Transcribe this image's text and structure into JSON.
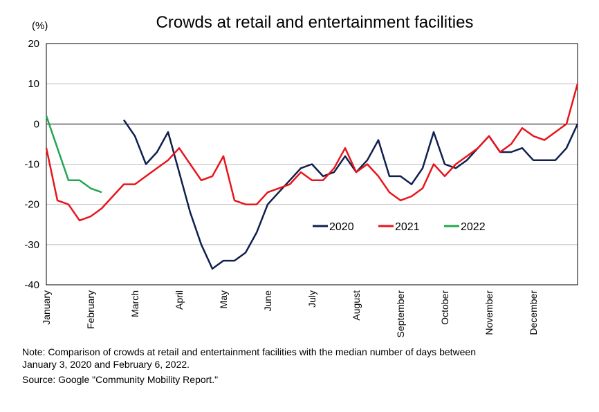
{
  "chart_data": {
    "type": "line",
    "title": "Crowds at retail and entertainment facilities",
    "y_label": "(%)",
    "categories": [
      "January",
      null,
      null,
      null,
      "February",
      null,
      null,
      null,
      "March",
      null,
      null,
      null,
      "April",
      null,
      null,
      null,
      "May",
      null,
      null,
      null,
      "June",
      null,
      null,
      null,
      "July",
      null,
      null,
      null,
      "August",
      null,
      null,
      null,
      "September",
      null,
      null,
      null,
      "October",
      null,
      null,
      null,
      "November",
      null,
      null,
      null,
      "December",
      null,
      null,
      null,
      null
    ],
    "series": [
      {
        "name": "2020",
        "color": "#0f1f4e",
        "values": [
          null,
          null,
          null,
          null,
          null,
          null,
          null,
          1,
          -3,
          -10,
          -7,
          -2,
          -12,
          -22,
          -30,
          -36,
          -34,
          -34,
          -32,
          -27,
          -20,
          -17,
          -14,
          -11,
          -10,
          -13,
          -12,
          -8,
          -12,
          -9,
          -4,
          -13,
          -13,
          -15,
          -11,
          -2,
          -10,
          -11,
          -9,
          -6,
          -3,
          -7,
          -7,
          -6,
          -9,
          -9,
          -9,
          -6,
          0
        ]
      },
      {
        "name": "2021",
        "color": "#e8141b",
        "values": [
          -6,
          -19,
          -20,
          -24,
          -23,
          -21,
          -18,
          -15,
          -15,
          -13,
          -11,
          -9,
          -6,
          -10,
          -14,
          -13,
          -8,
          -19,
          -20,
          -20,
          -17,
          -16,
          -15,
          -12,
          -14,
          -14,
          -11,
          -6,
          -12,
          -10,
          -13,
          -17,
          -19,
          -18,
          -16,
          -10,
          -13,
          -10,
          -8,
          -6,
          -3,
          -7,
          -5,
          -1,
          -3,
          -4,
          -2,
          0,
          10
        ]
      },
      {
        "name": "2022",
        "color": "#22a650",
        "values": [
          2,
          -6,
          -14,
          -14,
          -16,
          -17,
          null,
          null,
          null,
          null,
          null,
          null,
          null,
          null,
          null,
          null,
          null,
          null,
          null,
          null,
          null,
          null,
          null,
          null,
          null,
          null,
          null,
          null,
          null,
          null,
          null,
          null,
          null,
          null,
          null,
          null,
          null,
          null,
          null,
          null,
          null,
          null,
          null,
          null,
          null,
          null,
          null,
          null,
          null
        ]
      }
    ],
    "ylim": [
      -40,
      20
    ],
    "yticks": [
      20,
      10,
      0,
      -10,
      -20,
      -30,
      -40
    ],
    "grid": true,
    "notes": [
      "Note: Comparison of crowds at retail and entertainment facilities with the median number of days between",
      "January 3, 2020 and February 6, 2022.",
      "Source: Google \"Community Mobility Report.\""
    ]
  }
}
